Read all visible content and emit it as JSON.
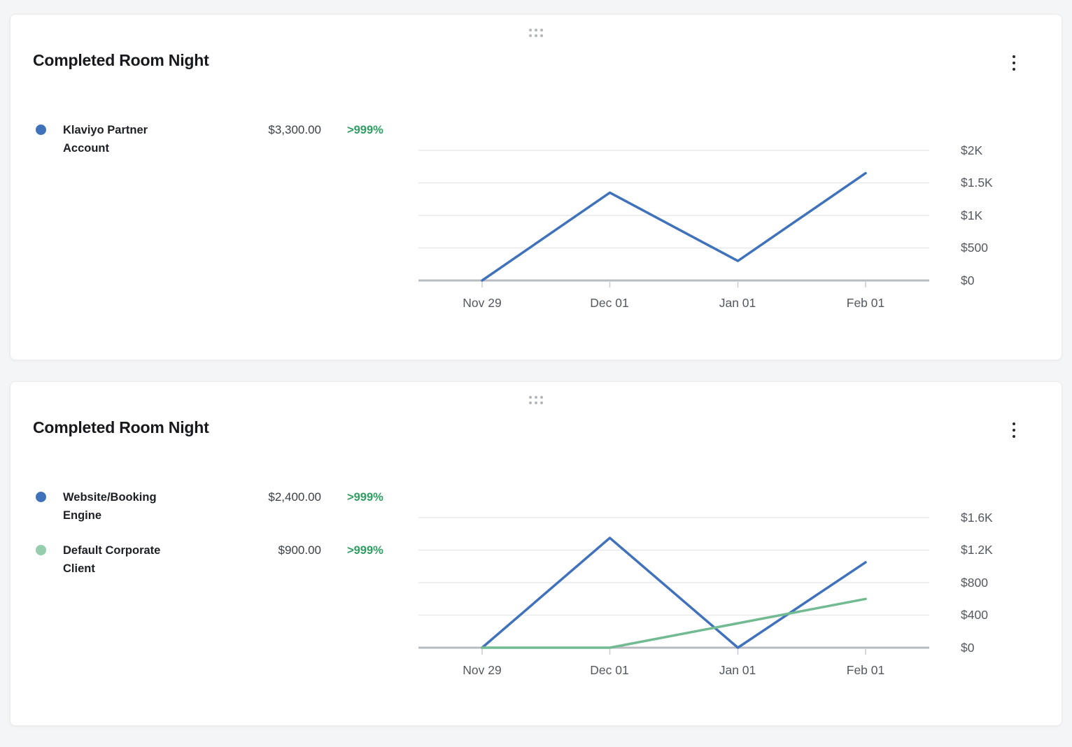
{
  "page": {
    "background": "#f4f5f6"
  },
  "icons": {
    "drag_handle": "grip-dots",
    "card_menu": "kebab-vertical"
  },
  "colors": {
    "blue_series": "#4072bc",
    "green_series_line": "#72bb92",
    "green_series_dot": "#95cdad",
    "positive_change": "#2f9e62",
    "axis_label": "#54585f",
    "gridline": "#e4e6e8",
    "baseline": "#b8bcc1",
    "tick": "#c9ccd0"
  },
  "chart_data": [
    {
      "type": "line",
      "title": "Completed Room Night",
      "x": [
        "Nov 29",
        "Dec 01",
        "Jan 01",
        "Feb 01"
      ],
      "y_ticks": [
        "$2K",
        "$1.5K",
        "$1K",
        "$500",
        "$0"
      ],
      "ylim": [
        0,
        2000
      ],
      "grid": true,
      "legend_position": "left",
      "series": [
        {
          "name": "Klaviyo Partner Account",
          "total": "$3,300.00",
          "change": ">999%",
          "color": "#4072bc",
          "dot_color": "#4072bc",
          "values": [
            0,
            1350,
            300,
            1650
          ]
        }
      ]
    },
    {
      "type": "line",
      "title": "Completed Room Night",
      "x": [
        "Nov 29",
        "Dec 01",
        "Jan 01",
        "Feb 01"
      ],
      "y_ticks": [
        "$1.6K",
        "$1.2K",
        "$800",
        "$400",
        "$0"
      ],
      "ylim": [
        0,
        1600
      ],
      "grid": true,
      "legend_position": "left",
      "series": [
        {
          "name": "Website/Booking Engine",
          "total": "$2,400.00",
          "change": ">999%",
          "color": "#4072bc",
          "dot_color": "#4072bc",
          "values": [
            0,
            1350,
            0,
            1050
          ]
        },
        {
          "name": "Default Corporate Client",
          "total": "$900.00",
          "change": ">999%",
          "color": "#72bb92",
          "dot_color": "#95cdad",
          "values": [
            0,
            0,
            300,
            600
          ]
        }
      ]
    }
  ]
}
